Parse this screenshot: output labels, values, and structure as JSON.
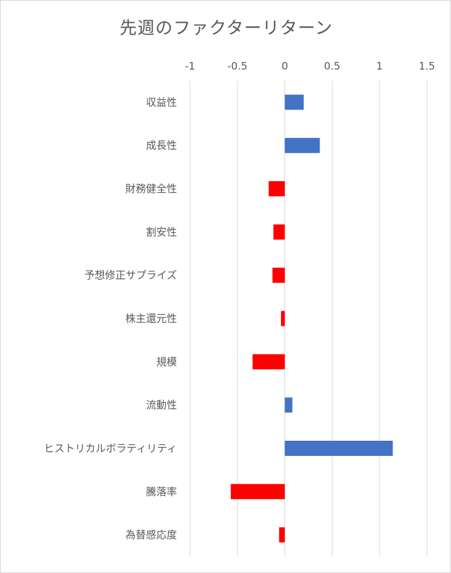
{
  "chart_data": {
    "type": "bar",
    "orientation": "horizontal",
    "title": "先週のファクターリターン",
    "categories": [
      "収益性",
      "成長性",
      "財務健全性",
      "割安性",
      "予想修正サプライズ",
      "株主還元性",
      "規模",
      "流動性",
      "ヒストリカルボラティリティ",
      "騰落率",
      "為替感応度"
    ],
    "values": [
      0.2,
      0.37,
      -0.17,
      -0.12,
      -0.13,
      -0.04,
      -0.34,
      0.08,
      1.14,
      -0.57,
      -0.06
    ],
    "xlim": [
      -1,
      1.5
    ],
    "xticks": [
      "-1",
      "-0.5",
      "0",
      "0.5",
      "1",
      "1.5"
    ],
    "xtick_values": [
      -1,
      -0.5,
      0,
      0.5,
      1,
      1.5
    ],
    "axis_position": "top",
    "grid": true,
    "colors": {
      "positive": "#4472c4",
      "negative": "#ff0000",
      "grid": "#d9d9d9",
      "text": "#595959"
    }
  }
}
